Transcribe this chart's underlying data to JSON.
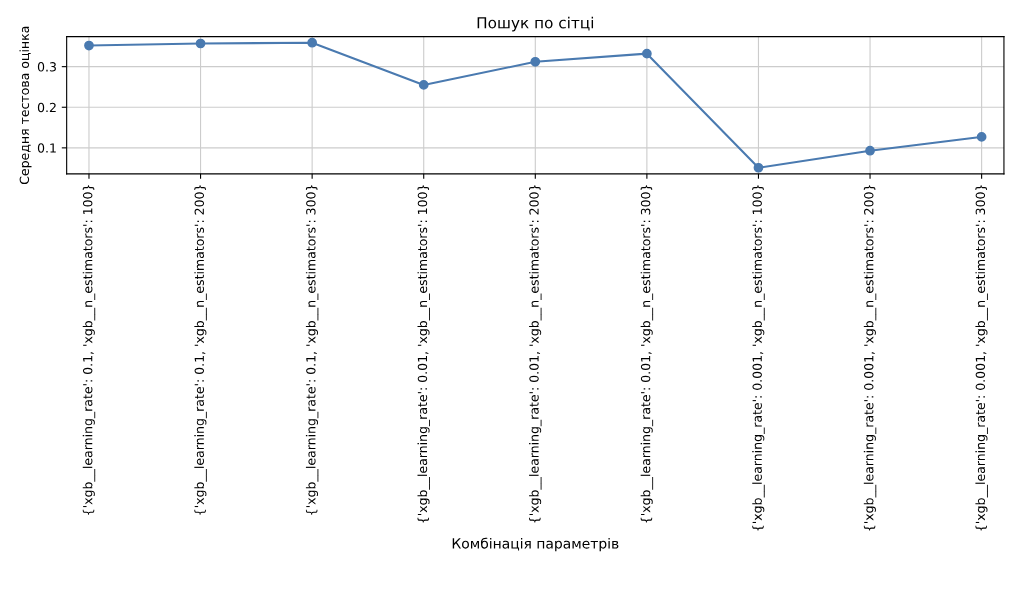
{
  "chart_data": {
    "type": "line",
    "title": "Пошук по сітці",
    "xlabel": "Комбінація параметрів",
    "ylabel": "Середня тестова оцінка",
    "categories": [
      "{'xgb__learning_rate': 0.1, 'xgb__n_estimators': 100}",
      "{'xgb__learning_rate': 0.1, 'xgb__n_estimators': 200}",
      "{'xgb__learning_rate': 0.1, 'xgb__n_estimators': 300}",
      "{'xgb__learning_rate': 0.01, 'xgb__n_estimators': 100}",
      "{'xgb__learning_rate': 0.01, 'xgb__n_estimators': 200}",
      "{'xgb__learning_rate': 0.01, 'xgb__n_estimators': 300}",
      "{'xgb__learning_rate': 0.001, 'xgb__n_estimators': 100}",
      "{'xgb__learning_rate': 0.001, 'xgb__n_estimators': 200}",
      "{'xgb__learning_rate': 0.001, 'xgb__n_estimators': 300}"
    ],
    "values": [
      0.352,
      0.357,
      0.359,
      0.255,
      0.312,
      0.332,
      0.051,
      0.093,
      0.127
    ],
    "color": "#4a7ab0",
    "ylim": [
      0.036,
      0.374
    ],
    "yticks": [
      0.1,
      0.2,
      0.3
    ],
    "grid": true,
    "marker": "circle",
    "line_style": "solid"
  }
}
